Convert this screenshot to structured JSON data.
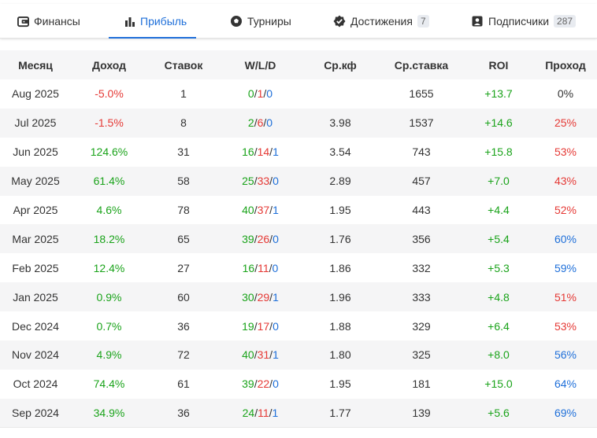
{
  "tabs": [
    {
      "label": "Финансы",
      "icon": "wallet-icon",
      "active": false,
      "badge": null
    },
    {
      "label": "Прибыль",
      "icon": "bar-chart-icon",
      "active": true,
      "badge": null
    },
    {
      "label": "Турниры",
      "icon": "soccer-ball-icon",
      "active": false,
      "badge": null
    },
    {
      "label": "Достижения",
      "icon": "verified-badge-icon",
      "active": false,
      "badge": "7"
    },
    {
      "label": "Подписчики",
      "icon": "person-card-icon",
      "active": false,
      "badge": "287"
    }
  ],
  "table": {
    "headers": [
      "Месяц",
      "Доход",
      "Ставок",
      "W/L/D",
      "Ср.кф",
      "Ср.ставка",
      "ROI",
      "Проход"
    ],
    "rows": [
      {
        "month": "Aug 2025",
        "income": "-5.0%",
        "bets": "1",
        "w": "0",
        "l": "1",
        "d": "0",
        "avg_odds": "",
        "avg_stake": "1655",
        "roi": "+13.7",
        "pass": "0%"
      },
      {
        "month": "Jul 2025",
        "income": "-1.5%",
        "bets": "8",
        "w": "2",
        "l": "6",
        "d": "0",
        "avg_odds": "3.98",
        "avg_stake": "1537",
        "roi": "+14.6",
        "pass": "25%"
      },
      {
        "month": "Jun 2025",
        "income": "124.6%",
        "bets": "31",
        "w": "16",
        "l": "14",
        "d": "1",
        "avg_odds": "3.54",
        "avg_stake": "743",
        "roi": "+15.8",
        "pass": "53%"
      },
      {
        "month": "May 2025",
        "income": "61.4%",
        "bets": "58",
        "w": "25",
        "l": "33",
        "d": "0",
        "avg_odds": "2.89",
        "avg_stake": "457",
        "roi": "+7.0",
        "pass": "43%"
      },
      {
        "month": "Apr 2025",
        "income": "4.6%",
        "bets": "78",
        "w": "40",
        "l": "37",
        "d": "1",
        "avg_odds": "1.95",
        "avg_stake": "443",
        "roi": "+4.4",
        "pass": "52%"
      },
      {
        "month": "Mar 2025",
        "income": "18.2%",
        "bets": "65",
        "w": "39",
        "l": "26",
        "d": "0",
        "avg_odds": "1.76",
        "avg_stake": "356",
        "roi": "+5.4",
        "pass": "60%"
      },
      {
        "month": "Feb 2025",
        "income": "12.4%",
        "bets": "27",
        "w": "16",
        "l": "11",
        "d": "0",
        "avg_odds": "1.86",
        "avg_stake": "332",
        "roi": "+5.3",
        "pass": "59%"
      },
      {
        "month": "Jan 2025",
        "income": "0.9%",
        "bets": "60",
        "w": "30",
        "l": "29",
        "d": "1",
        "avg_odds": "1.96",
        "avg_stake": "333",
        "roi": "+4.8",
        "pass": "51%"
      },
      {
        "month": "Dec 2024",
        "income": "0.7%",
        "bets": "36",
        "w": "19",
        "l": "17",
        "d": "0",
        "avg_odds": "1.88",
        "avg_stake": "329",
        "roi": "+6.4",
        "pass": "53%"
      },
      {
        "month": "Nov 2024",
        "income": "4.9%",
        "bets": "72",
        "w": "40",
        "l": "31",
        "d": "1",
        "avg_odds": "1.80",
        "avg_stake": "325",
        "roi": "+8.0",
        "pass": "56%"
      },
      {
        "month": "Oct 2024",
        "income": "74.4%",
        "bets": "61",
        "w": "39",
        "l": "22",
        "d": "0",
        "avg_odds": "1.95",
        "avg_stake": "181",
        "roi": "+15.0",
        "pass": "64%"
      },
      {
        "month": "Sep 2024",
        "income": "34.9%",
        "bets": "36",
        "w": "24",
        "l": "11",
        "d": "1",
        "avg_odds": "1.77",
        "avg_stake": "139",
        "roi": "+5.6",
        "pass": "69%"
      }
    ]
  },
  "colors": {
    "accent": "#1e6fd9",
    "positive": "#1aa31a",
    "negative": "#e53935",
    "stripe": "#f5f5f6"
  }
}
